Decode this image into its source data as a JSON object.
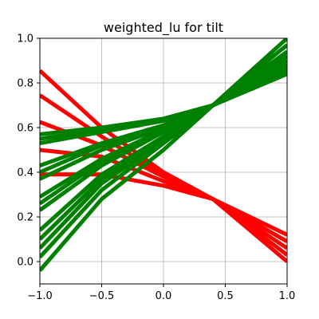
{
  "chart_data": {
    "type": "line",
    "title": "weighted_lu for tilt",
    "xlabel": "",
    "ylabel": "",
    "xlim": [
      -1.0,
      1.0
    ],
    "ylim": [
      -0.1,
      1.0
    ],
    "xticks": [
      -1.0,
      -0.5,
      0.0,
      0.5,
      1.0
    ],
    "xtick_labels": [
      "−1.0",
      "−0.5",
      "0.0",
      "0.5",
      "1.0"
    ],
    "yticks": [
      0.0,
      0.2,
      0.4,
      0.6,
      0.8,
      1.0
    ],
    "ytick_labels": [
      "0.0",
      "0.2",
      "0.4",
      "0.6",
      "0.8",
      "1.0"
    ],
    "grid": true,
    "legend": "none",
    "colors": {
      "red_lines": "#ff0000",
      "green_lines": "#008000",
      "grid": "#b0b0b0",
      "axes": "#000000"
    },
    "series": [
      {
        "color": "#ff0000",
        "x": [
          -1,
          -0.5,
          0,
          0.4,
          1
        ],
        "y": [
          0.855,
          0.6,
          0.4,
          0.28,
          0.0
        ]
      },
      {
        "color": "#ff0000",
        "x": [
          -1,
          -0.5,
          0,
          0.4,
          1
        ],
        "y": [
          0.745,
          0.56,
          0.39,
          0.28,
          0.03
        ]
      },
      {
        "color": "#ff0000",
        "x": [
          -1,
          -0.5,
          0,
          0.4,
          1
        ],
        "y": [
          0.625,
          0.52,
          0.38,
          0.28,
          0.06
        ]
      },
      {
        "color": "#ff0000",
        "x": [
          -1,
          -0.5,
          0,
          0.4,
          1
        ],
        "y": [
          0.5,
          0.47,
          0.36,
          0.28,
          0.09
        ]
      },
      {
        "color": "#ff0000",
        "x": [
          -1,
          -0.5,
          0,
          0.4,
          1
        ],
        "y": [
          0.39,
          0.39,
          0.34,
          0.28,
          0.12
        ]
      },
      {
        "color": "#008000",
        "x": [
          -1,
          -0.5,
          0,
          0.4,
          1
        ],
        "y": [
          0.57,
          0.6,
          0.64,
          0.7,
          1.0
        ]
      },
      {
        "color": "#008000",
        "x": [
          -1,
          -0.5,
          0,
          0.4,
          1
        ],
        "y": [
          0.55,
          0.59,
          0.635,
          0.7,
          0.97
        ]
      },
      {
        "color": "#008000",
        "x": [
          -1,
          -0.5,
          0,
          0.4,
          1
        ],
        "y": [
          0.53,
          0.58,
          0.63,
          0.7,
          0.94
        ]
      },
      {
        "color": "#008000",
        "x": [
          -1,
          -0.5,
          0,
          0.4,
          1
        ],
        "y": [
          0.43,
          0.53,
          0.61,
          0.7,
          0.92
        ]
      },
      {
        "color": "#008000",
        "x": [
          -1,
          -0.5,
          0,
          0.4,
          1
        ],
        "y": [
          0.4,
          0.52,
          0.6,
          0.7,
          0.9
        ]
      },
      {
        "color": "#008000",
        "x": [
          -1,
          -0.5,
          0,
          0.4,
          1
        ],
        "y": [
          0.37,
          0.5,
          0.6,
          0.7,
          0.88
        ]
      },
      {
        "color": "#008000",
        "x": [
          -1,
          -0.5,
          0,
          0.4,
          1
        ],
        "y": [
          0.29,
          0.46,
          0.59,
          0.7,
          0.86
        ]
      },
      {
        "color": "#008000",
        "x": [
          -1,
          -0.5,
          0,
          0.4,
          1
        ],
        "y": [
          0.26,
          0.45,
          0.585,
          0.7,
          0.85
        ]
      },
      {
        "color": "#008000",
        "x": [
          -1,
          -0.5,
          0,
          0.4,
          1
        ],
        "y": [
          0.23,
          0.43,
          0.58,
          0.7,
          0.84
        ]
      },
      {
        "color": "#008000",
        "x": [
          -1,
          -0.5,
          0,
          0.4,
          1
        ],
        "y": [
          0.14,
          0.39,
          0.56,
          0.7,
          0.85
        ]
      },
      {
        "color": "#008000",
        "x": [
          -1,
          -0.5,
          0,
          0.4,
          1
        ],
        "y": [
          0.1,
          0.37,
          0.55,
          0.7,
          0.86
        ]
      },
      {
        "color": "#008000",
        "x": [
          -1,
          -0.5,
          0,
          0.4,
          1
        ],
        "y": [
          0.06,
          0.35,
          0.54,
          0.7,
          0.87
        ]
      },
      {
        "color": "#008000",
        "x": [
          -1,
          -0.5,
          0,
          0.4,
          1
        ],
        "y": [
          0.02,
          0.32,
          0.53,
          0.7,
          0.88
        ]
      },
      {
        "color": "#008000",
        "x": [
          -1,
          -0.5,
          0,
          0.4,
          1
        ],
        "y": [
          -0.04,
          0.28,
          0.5,
          0.7,
          0.9
        ]
      }
    ]
  }
}
